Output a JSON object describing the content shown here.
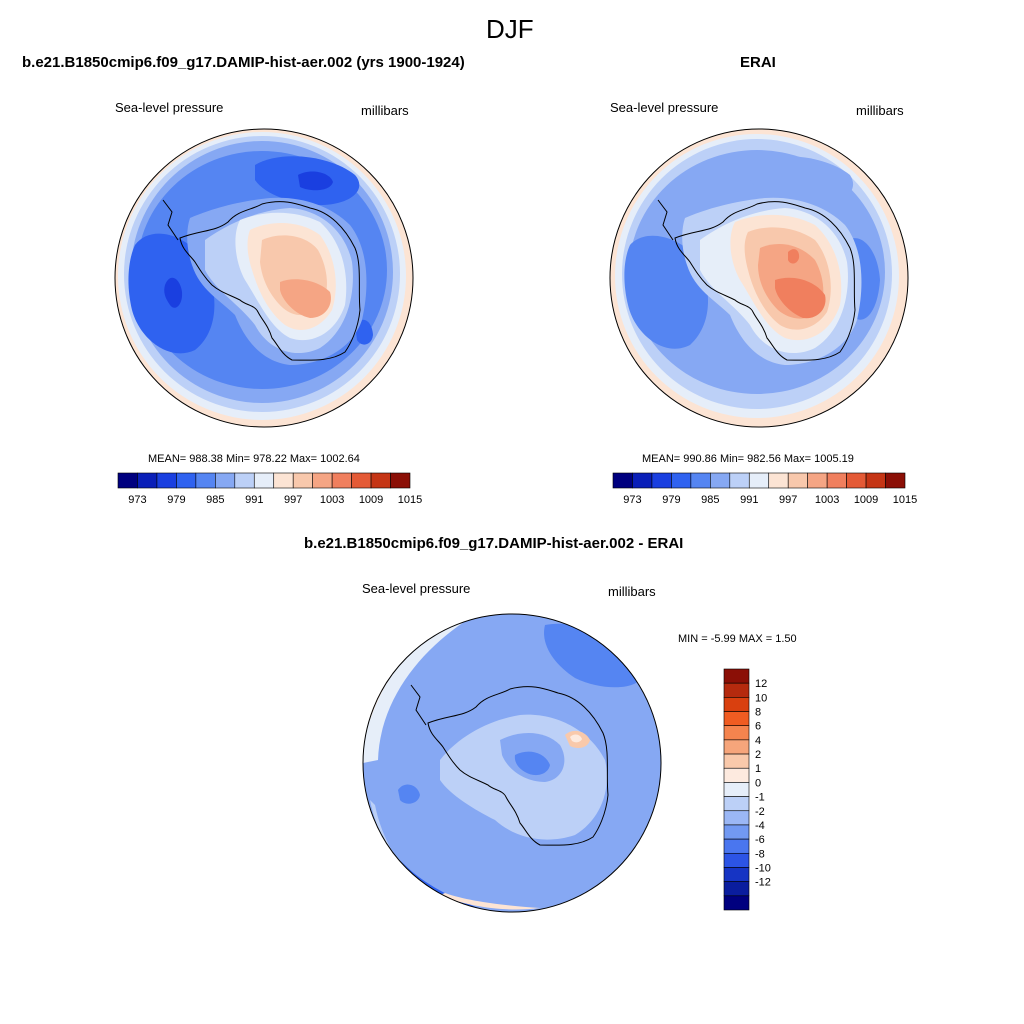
{
  "figure": {
    "season": "DJF"
  },
  "panels": [
    {
      "title": "b.e21.B1850cmip6.f09_g17.DAMIP-hist-aer.002 (yrs 1900-1924)",
      "left_label": "Sea-level pressure",
      "right_label": "millibars",
      "stats": "MEAN= 988.38  Min= 978.22  Max= 1002.64",
      "colorbar_ticks": [
        "973",
        "979",
        "985",
        "991",
        "997",
        "1003",
        "1009",
        "1015"
      ]
    },
    {
      "title": "ERAI",
      "left_label": "Sea-level pressure",
      "right_label": "millibars",
      "stats": "MEAN= 990.86  Min= 982.56  Max= 1005.19",
      "colorbar_ticks": [
        "973",
        "979",
        "985",
        "991",
        "997",
        "1003",
        "1009",
        "1015"
      ]
    },
    {
      "title": "b.e21.B1850cmip6.f09_g17.DAMIP-hist-aer.002 - ERAI",
      "left_label": "Sea-level pressure",
      "right_label": "millibars",
      "stats": "MIN =  -5.99 MAX =   1.50",
      "colorbar_ticks": [
        "12",
        "10",
        "8",
        "6",
        "4",
        "2",
        "1",
        "0",
        "-1",
        "-2",
        "-4",
        "-6",
        "-8",
        "-10",
        "-12"
      ]
    }
  ],
  "colors": {
    "abs_scale": [
      "#00007f",
      "#0a1fb8",
      "#1a3fe0",
      "#2f62f0",
      "#5585f2",
      "#86a8f3",
      "#bcd0f7",
      "#e6eef9",
      "#fce4d4",
      "#f8c8ac",
      "#f5a584",
      "#f07f5e",
      "#e45a36",
      "#c53515",
      "#8b0f06"
    ],
    "diff_scale": [
      "#8b0f06",
      "#b52a0e",
      "#d9400f",
      "#f05c22",
      "#f5844e",
      "#f6a57b",
      "#f9c9ab",
      "#fdeadf",
      "#e6eef9",
      "#bcd0f7",
      "#9bb7f5",
      "#7299f2",
      "#4a76ef",
      "#2c54e5",
      "#1634c4",
      "#0a1d9e",
      "#00007f"
    ]
  }
}
